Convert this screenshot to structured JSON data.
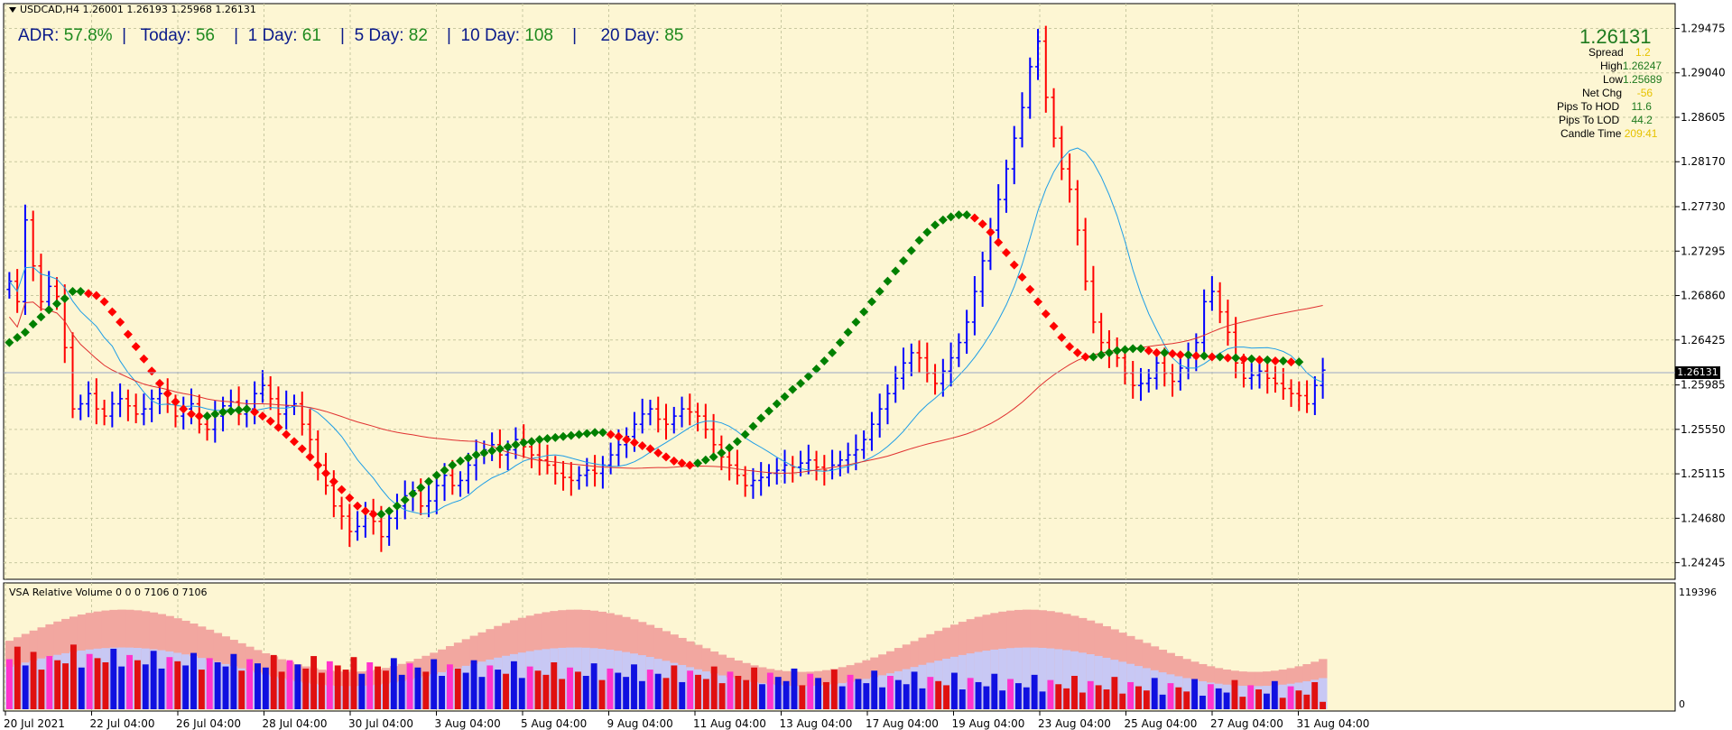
{
  "window": {
    "symbol_line": "USDCAD,H4  1.26001 1.26193 1.25968 1.26131",
    "volume_title": "VSA Relative Volume 0 0 0 7106 0 7106"
  },
  "adr_panel": {
    "adr_label": "ADR:",
    "adr_value": "57.8%",
    "today_label": "Today:",
    "today_value": "56",
    "d1_label": "1 Day:",
    "d1_value": "61",
    "d5_label": "5 Day:",
    "d5_value": "82",
    "d10_label": "10 Day:",
    "d10_value": "108",
    "d20_label": "20 Day:",
    "d20_value": "85"
  },
  "info_panel": {
    "price": "1.26131",
    "spread_label": "Spread",
    "spread_value": "1.2",
    "high_label": "High",
    "high_value": "1.26247",
    "low_label": "Low",
    "low_value": "1.25689",
    "netchg_label": "Net Chg",
    "netchg_value": "-56",
    "hod_label": "Pips To HOD",
    "hod_value": "11.6",
    "lod_label": "Pips To LOD",
    "lod_value": "44.2",
    "candle_label": "Candle Time",
    "candle_value": "209:41"
  },
  "current_price_tag": "1.26131",
  "volume_axis": {
    "max_label": "119396",
    "min_label": "0"
  },
  "colors": {
    "background": "#fdf6d3",
    "grid": "#c8c8a0",
    "bull_bar": "#0000ff",
    "bear_bar": "#ff0000",
    "trend_up": "#008000",
    "trend_down": "#ff0000",
    "ma_fast": "#1e9ee6",
    "ma_slow": "#e03030"
  },
  "chart_data": [
    {
      "type": "line",
      "title": "USDCAD,H4",
      "price_range": [
        1.241,
        1.297
      ],
      "y_ticks": [
        "1.29475",
        "1.29040",
        "1.28605",
        "1.28170",
        "1.27730",
        "1.27295",
        "1.26860",
        "1.26425",
        "1.25985",
        "1.25550",
        "1.25115",
        "1.24680",
        "1.24245"
      ],
      "x_ticks": [
        "20 Jul 2021",
        "22 Jul 04:00",
        "26 Jul 04:00",
        "28 Jul 04:00",
        "30 Jul 04:00",
        "3 Aug 04:00",
        "5 Aug 04:00",
        "9 Aug 04:00",
        "11 Aug 04:00",
        "13 Aug 04:00",
        "17 Aug 04:00",
        "19 Aug 04:00",
        "23 Aug 04:00",
        "25 Aug 04:00",
        "27 Aug 04:00",
        "31 Aug 04:00"
      ],
      "series": [
        {
          "values": [
            1.27,
            1.268,
            1.276,
            1.2715,
            1.268,
            1.2695,
            1.2685,
            1.2635,
            1.2575,
            1.258,
            1.259,
            1.2575,
            1.2568,
            1.258,
            1.2585,
            1.2578,
            1.257,
            1.2575,
            1.2585,
            1.259,
            1.258,
            1.2568,
            1.2575,
            1.258,
            1.256,
            1.2555,
            1.2568,
            1.2578,
            1.2582,
            1.257,
            1.2575,
            1.259,
            1.2598,
            1.2585,
            1.257,
            1.2578,
            1.258,
            1.256,
            1.2545,
            1.252,
            1.25,
            1.248,
            1.247,
            1.2455,
            1.246,
            1.2475,
            1.2465,
            1.245,
            1.2468,
            1.248,
            1.249,
            1.2495,
            1.248,
            1.2485,
            1.25,
            1.251,
            1.25,
            1.2505,
            1.252,
            1.253,
            1.2535,
            1.254,
            1.253,
            1.2535,
            1.2545,
            1.2538,
            1.253,
            1.2525,
            1.252,
            1.2512,
            1.2508,
            1.2505,
            1.251,
            1.2515,
            1.2512,
            1.252,
            1.253,
            1.254,
            1.2548,
            1.256,
            1.257,
            1.2575,
            1.2565,
            1.256,
            1.2568,
            1.2575,
            1.2572,
            1.2568,
            1.2555,
            1.254,
            1.2528,
            1.252,
            1.251,
            1.25,
            1.2505,
            1.2508,
            1.2512,
            1.2515,
            1.252,
            1.2518,
            1.2522,
            1.2525,
            1.2518,
            1.2515,
            1.252,
            1.2525,
            1.253,
            1.2535,
            1.2545,
            1.256,
            1.2575,
            1.259,
            1.2605,
            1.262,
            1.263,
            1.2625,
            1.261,
            1.26,
            1.2612,
            1.2625,
            1.264,
            1.266,
            1.269,
            1.272,
            1.275,
            1.278,
            1.281,
            1.284,
            1.287,
            1.291,
            1.2935,
            1.288,
            1.284,
            1.281,
            1.279,
            1.275,
            1.27,
            1.266,
            1.264,
            1.263,
            1.2625,
            1.261,
            1.2598,
            1.26,
            1.2605,
            1.262,
            1.261,
            1.2602,
            1.2615,
            1.2625,
            1.264,
            1.268,
            1.269,
            1.267,
            1.265,
            1.262,
            1.2605,
            1.2608,
            1.2612,
            1.2605,
            1.26,
            1.2595,
            1.259,
            1.2588,
            1.258,
            1.2598,
            1.2613
          ],
          "name": "Close"
        },
        {
          "values": [
            1.264,
            1.2645,
            1.265,
            1.2658,
            1.2665,
            1.2672,
            1.2678,
            1.2683,
            1.269,
            1.269,
            1.2688,
            1.2686,
            1.268,
            1.267,
            1.266,
            1.2648,
            1.2636,
            1.2624,
            1.2612,
            1.26,
            1.259,
            1.2582,
            1.2575,
            1.257,
            1.2568,
            1.2568,
            1.257,
            1.2572,
            1.2573,
            1.2574,
            1.2575,
            1.2572,
            1.2568,
            1.2563,
            1.2557,
            1.255,
            1.2543,
            1.2536,
            1.2528,
            1.252,
            1.2512,
            1.2504,
            1.2496,
            1.2488,
            1.248,
            1.2475,
            1.2472,
            1.2472,
            1.2475,
            1.248,
            1.2486,
            1.2492,
            1.2498,
            1.2504,
            1.251,
            1.2515,
            1.252,
            1.2524,
            1.2527,
            1.253,
            1.2532,
            1.2534,
            1.2536,
            1.2538,
            1.254,
            1.2542,
            1.2543,
            1.2545,
            1.2546,
            1.2547,
            1.2548,
            1.2549,
            1.255,
            1.2551,
            1.2552,
            1.2552,
            1.255,
            1.2548,
            1.2545,
            1.2542,
            1.2539,
            1.2536,
            1.2532,
            1.2528,
            1.2524,
            1.2522,
            1.252,
            1.2522,
            1.2525,
            1.2528,
            1.2532,
            1.2537,
            1.2543,
            1.255,
            1.2558,
            1.2566,
            1.2573,
            1.258,
            1.2587,
            1.2594,
            1.26,
            1.2607,
            1.2614,
            1.2622,
            1.263,
            1.264,
            1.265,
            1.266,
            1.267,
            1.268,
            1.269,
            1.27,
            1.271,
            1.272,
            1.273,
            1.274,
            1.2748,
            1.2755,
            1.276,
            1.2763,
            1.2765,
            1.2765,
            1.2762,
            1.2756,
            1.2748,
            1.2738,
            1.2728,
            1.2716,
            1.2704,
            1.2692,
            1.268,
            1.2668,
            1.2656,
            1.2645,
            1.2636,
            1.263,
            1.2626,
            1.2626,
            1.2628,
            1.263,
            1.2632,
            1.2633,
            1.2634,
            1.2634,
            1.2632,
            1.263,
            1.263,
            1.2629,
            1.2628,
            1.2628,
            1.2627,
            1.2627,
            1.2626,
            1.2626,
            1.2625,
            1.2625,
            1.2624,
            1.2624,
            1.2623,
            1.2623,
            1.2622,
            1.2622,
            1.2621,
            1.2621
          ],
          "name": "Trend"
        }
      ],
      "xlabel": "",
      "ylabel": "",
      "grid": true
    },
    {
      "type": "bar",
      "title": "VSA Relative Volume 0 0 0 7106 0 7106",
      "ylim": [
        0,
        119396
      ],
      "series": [
        {
          "values": [
            48000,
            60000,
            42000,
            55000,
            38000,
            51000,
            47000,
            44000,
            62000,
            40000,
            53000,
            49000,
            45000,
            58000,
            41000,
            52000,
            47000,
            43000,
            56000,
            39000,
            50000,
            46000,
            42000,
            54000,
            38000,
            49000,
            45000,
            41000,
            53000,
            37000,
            48000,
            44000,
            40000,
            52000,
            36000,
            47000,
            43000,
            39000,
            51000,
            35000,
            46000,
            42000,
            38000,
            50000,
            34000,
            45000,
            41000,
            37000,
            49000,
            33000,
            44000,
            40000,
            36000,
            48000,
            32000,
            43000,
            39000,
            35000,
            47000,
            31000,
            42000,
            38000,
            34000,
            46000,
            30000,
            41000,
            37000,
            33000,
            45000,
            29000,
            40000,
            36000,
            32000,
            44000,
            28000,
            39000,
            35000,
            31000,
            43000,
            27000,
            38000,
            34000,
            30000,
            42000,
            26000,
            37000,
            33000,
            29000,
            41000,
            25000,
            36000,
            32000,
            28000,
            40000,
            24000,
            35000,
            31000,
            27000,
            39000,
            23000,
            34000,
            30000,
            26000,
            38000,
            22000,
            33000,
            29000,
            25000,
            37000,
            21000,
            32000,
            28000,
            24000,
            36000,
            20000,
            31000,
            27000,
            23000,
            35000,
            19000,
            30000,
            26000,
            22000,
            34000,
            18000,
            29000,
            25000,
            21000,
            33000,
            17000,
            28000,
            24000,
            20000,
            32000,
            16000,
            27000,
            23000,
            19000,
            31000,
            15000,
            26000,
            22000,
            18000,
            30000,
            14000,
            25000,
            21000,
            17000,
            29000,
            13000,
            24000,
            20000,
            16000,
            28000,
            12000,
            23000,
            19000,
            15000,
            27000,
            11000,
            22000,
            18000,
            14000,
            26000,
            7106
          ],
          "name": "Volume"
        }
      ]
    }
  ]
}
